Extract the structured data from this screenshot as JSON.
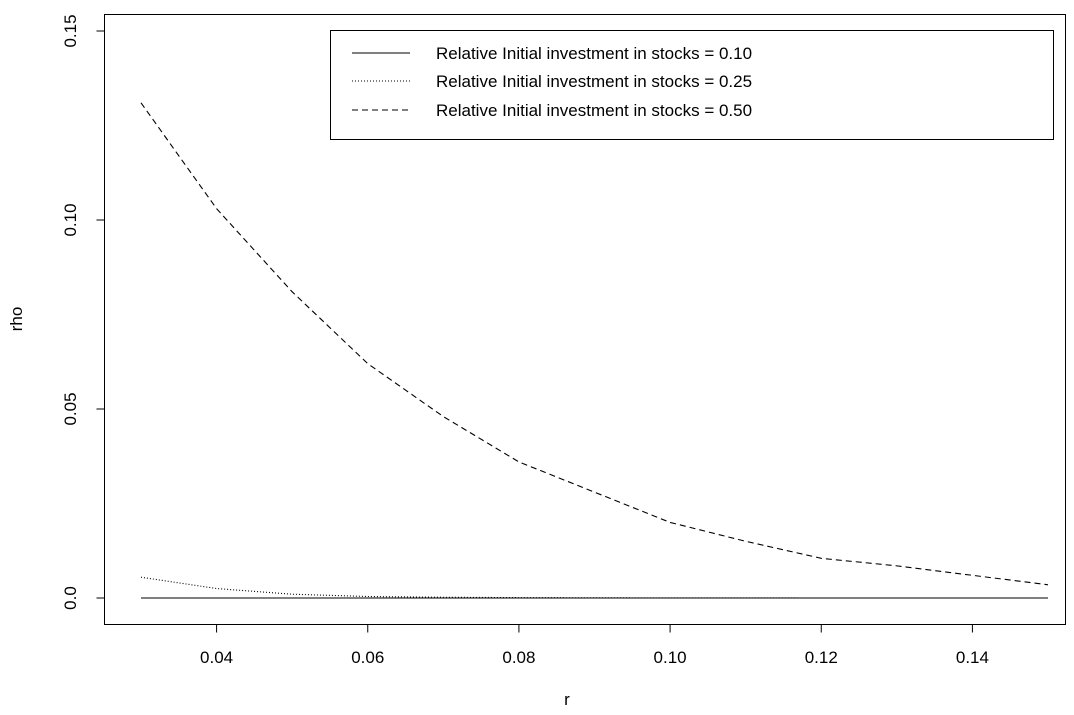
{
  "chart_data": {
    "type": "line",
    "title": "",
    "xlabel": "r",
    "ylabel": "rho",
    "xlim": [
      0.03,
      0.15
    ],
    "ylim": [
      0.0,
      0.15
    ],
    "x_ticks": [
      0.04,
      0.06,
      0.08,
      0.1,
      0.12,
      0.14
    ],
    "x_tick_labels": [
      "0.04",
      "0.06",
      "0.08",
      "0.10",
      "0.12",
      "0.14"
    ],
    "y_ticks": [
      0.0,
      0.05,
      0.1,
      0.15
    ],
    "y_tick_labels": [
      "0.0",
      "0.05",
      "0.10",
      "0.15"
    ],
    "grid": false,
    "legend_position": "top-right",
    "x": [
      0.03,
      0.04,
      0.05,
      0.06,
      0.07,
      0.08,
      0.09,
      0.1,
      0.11,
      0.12,
      0.13,
      0.14,
      0.15
    ],
    "series": [
      {
        "name": "Relative Initial investment in stocks = 0.10",
        "line_style": "solid",
        "values": [
          0,
          0,
          0,
          0,
          0,
          0,
          0,
          0,
          0,
          0,
          0,
          0,
          0
        ]
      },
      {
        "name": "Relative Initial investment in stocks = 0.25",
        "line_style": "dotted",
        "values": [
          0.0055,
          0.0025,
          0.001,
          0.0004,
          0.0002,
          0.0001,
          5e-05,
          2e-05,
          1e-05,
          0,
          0,
          0,
          0
        ]
      },
      {
        "name": "Relative Initial investment in stocks = 0.50",
        "line_style": "dashed",
        "values": [
          0.131,
          0.103,
          0.081,
          0.062,
          0.048,
          0.036,
          0.028,
          0.02,
          0.015,
          0.0105,
          0.0085,
          0.006,
          0.0035
        ]
      }
    ]
  }
}
